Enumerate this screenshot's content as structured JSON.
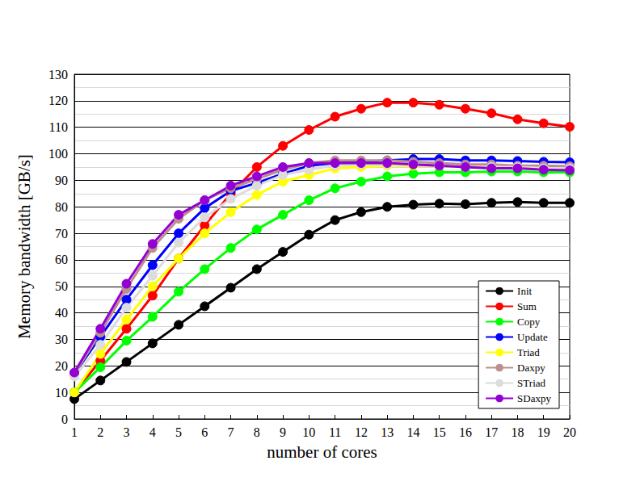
{
  "chart_data": {
    "type": "line",
    "x_label": "number of cores",
    "y_label": "Memory bandwidth [GB/s]",
    "x": [
      1,
      2,
      3,
      4,
      5,
      6,
      7,
      8,
      9,
      10,
      11,
      12,
      13,
      14,
      15,
      16,
      17,
      18,
      19,
      20
    ],
    "xlim": [
      1,
      20
    ],
    "xticks": [
      1,
      2,
      3,
      4,
      5,
      6,
      7,
      8,
      9,
      10,
      11,
      12,
      13,
      14,
      15,
      16,
      17,
      18,
      19,
      20
    ],
    "ylim": [
      0,
      130
    ],
    "yticks": [
      0,
      10,
      20,
      30,
      40,
      50,
      60,
      70,
      80,
      90,
      100,
      110,
      120,
      130
    ],
    "grid": true,
    "legend": "lower right",
    "marker": "circle",
    "line_style": "solid",
    "series": [
      {
        "name": "Init",
        "color": "#000000",
        "values": [
          7.5,
          14.5,
          21.5,
          28.5,
          35.5,
          42.5,
          49.5,
          56.5,
          63,
          69.5,
          75,
          78,
          80,
          80.8,
          81.2,
          81,
          81.5,
          81.8,
          81.5,
          81.5
        ]
      },
      {
        "name": "Sum",
        "color": "#ff0000",
        "values": [
          10,
          22,
          34,
          46.5,
          60.5,
          73,
          85,
          95,
          103,
          109,
          114,
          117,
          119.3,
          119.3,
          118.5,
          117,
          115.3,
          113,
          111.5,
          110.2
        ]
      },
      {
        "name": "Copy",
        "color": "#00ff00",
        "values": [
          10,
          19.5,
          29.5,
          38.5,
          48,
          56.5,
          64.5,
          71.5,
          77,
          82.5,
          87,
          89.5,
          91.5,
          92.5,
          93,
          93,
          93.3,
          93.3,
          93,
          93
        ]
      },
      {
        "name": "Update",
        "color": "#0000ff",
        "values": [
          17,
          31,
          45,
          58,
          70,
          79.5,
          86,
          89,
          92.5,
          95.5,
          96.5,
          97,
          97.5,
          98,
          98,
          97.5,
          97.5,
          97.3,
          97,
          96.8
        ]
      },
      {
        "name": "Triad",
        "color": "#ffff00",
        "values": [
          10,
          24.5,
          37.5,
          50,
          60.5,
          70,
          78,
          84.5,
          89.5,
          92,
          94.5,
          95,
          95.5,
          95.5,
          95.5,
          95,
          95,
          95,
          95,
          95
        ]
      },
      {
        "name": "Daxpy",
        "color": "#bc8f8f",
        "values": [
          17,
          32.5,
          49,
          64.5,
          75.5,
          82.5,
          87,
          90.5,
          94,
          96.5,
          97.5,
          97.5,
          97.5,
          97,
          96.5,
          96,
          96,
          95.5,
          95.5,
          95.3
        ]
      },
      {
        "name": "STriad",
        "color": "#dcdcdc",
        "values": [
          16,
          28,
          42,
          54,
          66.5,
          76,
          83,
          88,
          92,
          94,
          95.5,
          96,
          96,
          96,
          95.5,
          95,
          95,
          95,
          94.5,
          94.5
        ]
      },
      {
        "name": "SDaxpy",
        "color": "#9400d3",
        "values": [
          17.5,
          34,
          51,
          66,
          77,
          82.5,
          88,
          91.5,
          95,
          96.5,
          96.5,
          96.5,
          96.5,
          96,
          95.5,
          95,
          94.5,
          94.5,
          94,
          93.8
        ]
      }
    ]
  }
}
